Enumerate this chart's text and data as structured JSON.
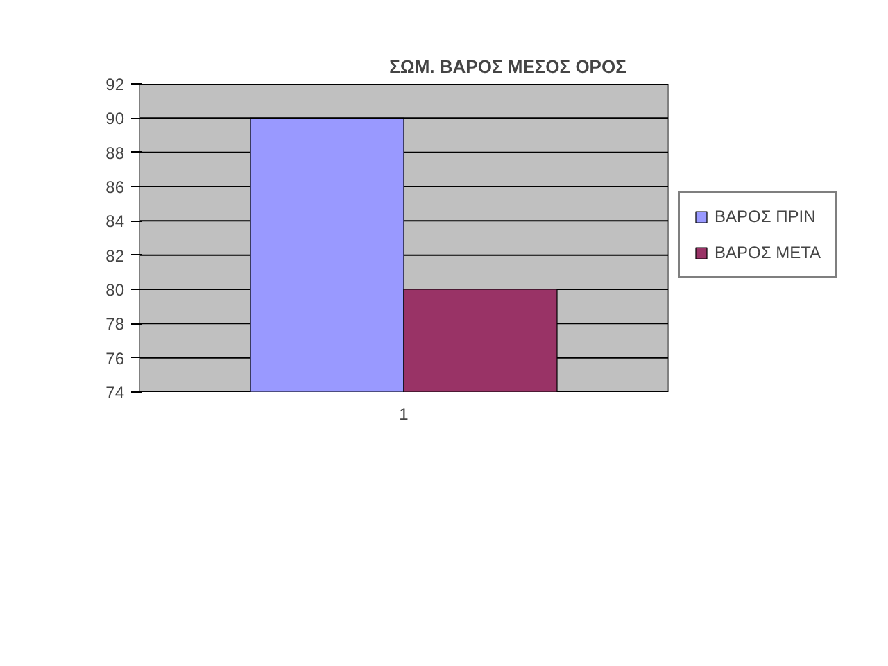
{
  "chart_data": {
    "type": "bar",
    "title": "ΣΩΜ. ΒΑΡΟΣ ΜΕΣΟΣ ΟΡΟΣ",
    "categories": [
      "1"
    ],
    "series": [
      {
        "name": "ΒΑΡΟΣ ΠΡΙΝ",
        "color": "#9999ff",
        "values": [
          90
        ]
      },
      {
        "name": "ΒΑΡΟΣ ΜΕΤΑ",
        "color": "#993366",
        "values": [
          80
        ]
      }
    ],
    "ylim": [
      74,
      92
    ],
    "yticks": [
      74,
      76,
      78,
      80,
      82,
      84,
      86,
      88,
      90,
      92
    ],
    "grid": "y",
    "legend": "right"
  }
}
